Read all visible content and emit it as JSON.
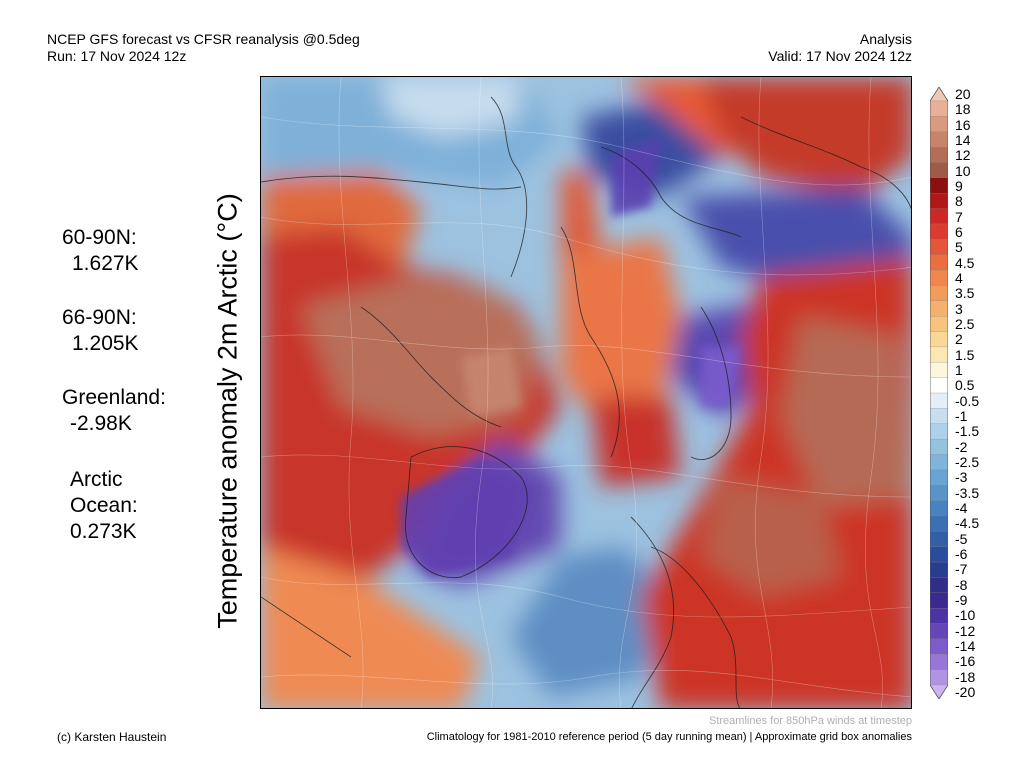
{
  "header": {
    "title": "NCEP GFS forecast vs CFSR reanalysis @0.5deg",
    "run": "Run: 17 Nov 2024 12z",
    "type": "Analysis",
    "valid": "Valid: 17 Nov 2024 12z"
  },
  "ylabel": "Temperature anomaly 2m Arctic (°C)",
  "stats": {
    "lat_60_90": {
      "label": "60-90N:",
      "value": "1.627K"
    },
    "lat_66_90": {
      "label": "66-90N:",
      "value": "1.205K"
    },
    "greenland": {
      "label": "Greenland:",
      "value": "-2.98K"
    },
    "arctic_ocean": {
      "label_1": "Arctic",
      "label_2": "Ocean:",
      "value": "0.273K"
    }
  },
  "colorbar": {
    "labels": [
      "20",
      "18",
      "16",
      "14",
      "12",
      "10",
      "9",
      "8",
      "7",
      "6",
      "5",
      "4.5",
      "4",
      "3.5",
      "3",
      "2.5",
      "2",
      "1.5",
      "1",
      "0.5",
      "-0.5",
      "-1",
      "-1.5",
      "-2",
      "-2.5",
      "-3",
      "-3.5",
      "-4",
      "-4.5",
      "-5",
      "-6",
      "-7",
      "-8",
      "-9",
      "-10",
      "-12",
      "-14",
      "-16",
      "-18",
      "-20"
    ],
    "colors": [
      "#f2c8b4",
      "#e8b098",
      "#d99a80",
      "#c8846a",
      "#b46e58",
      "#a05a48",
      "#8c1010",
      "#b01818",
      "#cc2828",
      "#dc3c30",
      "#e45638",
      "#ea6e42",
      "#ef8650",
      "#f29c5c",
      "#f4b06c",
      "#f6c47e",
      "#f8d894",
      "#fae8b0",
      "#fcf6dc",
      "#ffffff",
      "#e2eef8",
      "#c8def0",
      "#afd0ea",
      "#96c2e2",
      "#80b4da",
      "#6aa4d2",
      "#5894ca",
      "#4882c0",
      "#3c70b4",
      "#3260a8",
      "#2a4c9c",
      "#283c90",
      "#302e88",
      "#3a2a90",
      "#4c34a4",
      "#6446b8",
      "#7c5cca",
      "#9676d8",
      "#b094e4",
      "#ccb4f0"
    ]
  },
  "footer": {
    "streamlines": "Streamlines for 850hPa winds at timestep",
    "credit": "(c) Karsten Haustein",
    "climatology": "Climatology for 1981-2010 reference period (5 day running mean) | Approximate grid box anomalies"
  }
}
